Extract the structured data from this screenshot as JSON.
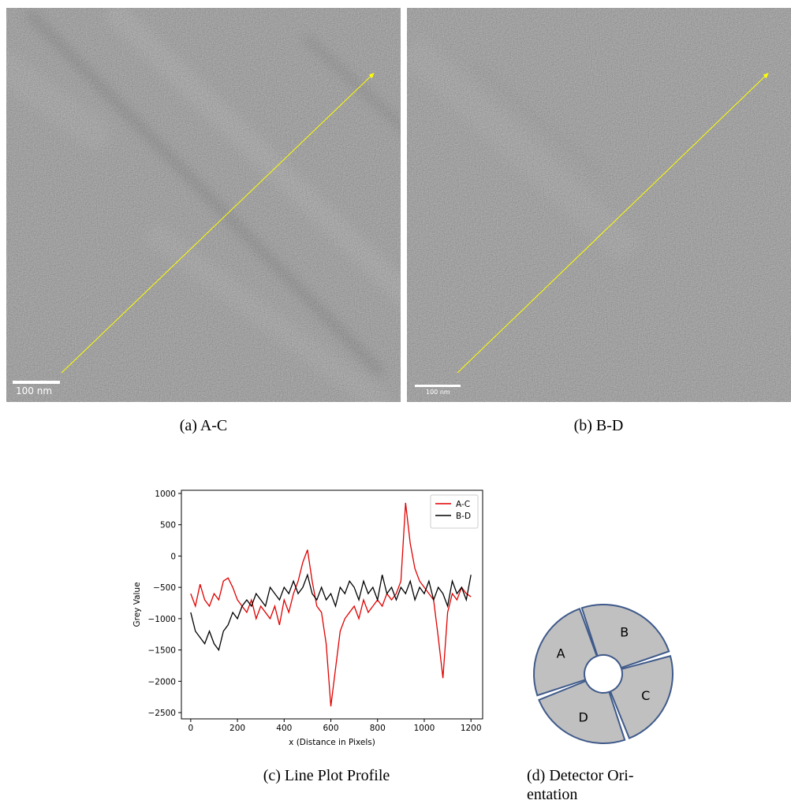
{
  "panels": [
    {
      "scale_bar": "100 nm",
      "caption": "(a) A-C"
    },
    {
      "scale_bar": "100 nm",
      "caption": "(b) B-D"
    }
  ],
  "chart_data": {
    "type": "line",
    "caption": "(c) Line Plot Profile",
    "xlabel": "x (Distance in Pixels)",
    "ylabel": "Grey Value",
    "xlim": [
      -40,
      1250
    ],
    "ylim": [
      -2600,
      1050
    ],
    "xticks": [
      0,
      200,
      400,
      600,
      800,
      1000,
      1200
    ],
    "yticks": [
      1000,
      500,
      0,
      {
        "value": -500,
        "label": "−500"
      },
      {
        "value": -1000,
        "label": "−1000"
      },
      {
        "value": -1500,
        "label": "−1500"
      },
      {
        "value": -2000,
        "label": "−2000"
      },
      {
        "value": -2500,
        "label": "−2500"
      }
    ],
    "legend": "upper right",
    "x": [
      0,
      20,
      40,
      60,
      80,
      100,
      120,
      140,
      160,
      180,
      200,
      220,
      240,
      260,
      280,
      300,
      320,
      340,
      360,
      380,
      400,
      420,
      440,
      460,
      480,
      500,
      520,
      540,
      560,
      580,
      600,
      620,
      640,
      660,
      680,
      700,
      720,
      740,
      760,
      780,
      800,
      820,
      840,
      860,
      880,
      900,
      920,
      940,
      960,
      980,
      1000,
      1020,
      1040,
      1060,
      1080,
      1100,
      1120,
      1140,
      1160,
      1180,
      1200
    ],
    "series": [
      {
        "name": "A-C",
        "color": "#e00000",
        "values": [
          -600,
          -800,
          -450,
          -700,
          -800,
          -600,
          -700,
          -400,
          -350,
          -500,
          -700,
          -800,
          -900,
          -700,
          -1000,
          -800,
          -900,
          -1000,
          -800,
          -1100,
          -700,
          -900,
          -600,
          -400,
          -100,
          100,
          -400,
          -800,
          -900,
          -1400,
          -2400,
          -1800,
          -1200,
          -1000,
          -900,
          -800,
          -1000,
          -700,
          -900,
          -800,
          -700,
          -800,
          -600,
          -700,
          -600,
          -400,
          850,
          200,
          -200,
          -400,
          -500,
          -600,
          -700,
          -1300,
          -1950,
          -900,
          -600,
          -700,
          -500,
          -600,
          -650
        ]
      },
      {
        "name": "B-D",
        "color": "#000000",
        "values": [
          -900,
          -1200,
          -1300,
          -1400,
          -1200,
          -1400,
          -1500,
          -1200,
          -1100,
          -900,
          -1000,
          -800,
          -700,
          -800,
          -600,
          -700,
          -800,
          -500,
          -600,
          -700,
          -500,
          -600,
          -400,
          -600,
          -500,
          -300,
          -600,
          -700,
          -500,
          -700,
          -600,
          -800,
          -500,
          -600,
          -400,
          -500,
          -700,
          -400,
          -600,
          -500,
          -700,
          -300,
          -600,
          -500,
          -700,
          -500,
          -600,
          -400,
          -700,
          -500,
          -600,
          -400,
          -700,
          -500,
          -600,
          -800,
          -400,
          -600,
          -500,
          -700,
          -300
        ]
      }
    ]
  },
  "detector": {
    "labels": [
      "A",
      "B",
      "C",
      "D"
    ],
    "caption": [
      "(d) Detector Ori-",
      "entation"
    ]
  }
}
